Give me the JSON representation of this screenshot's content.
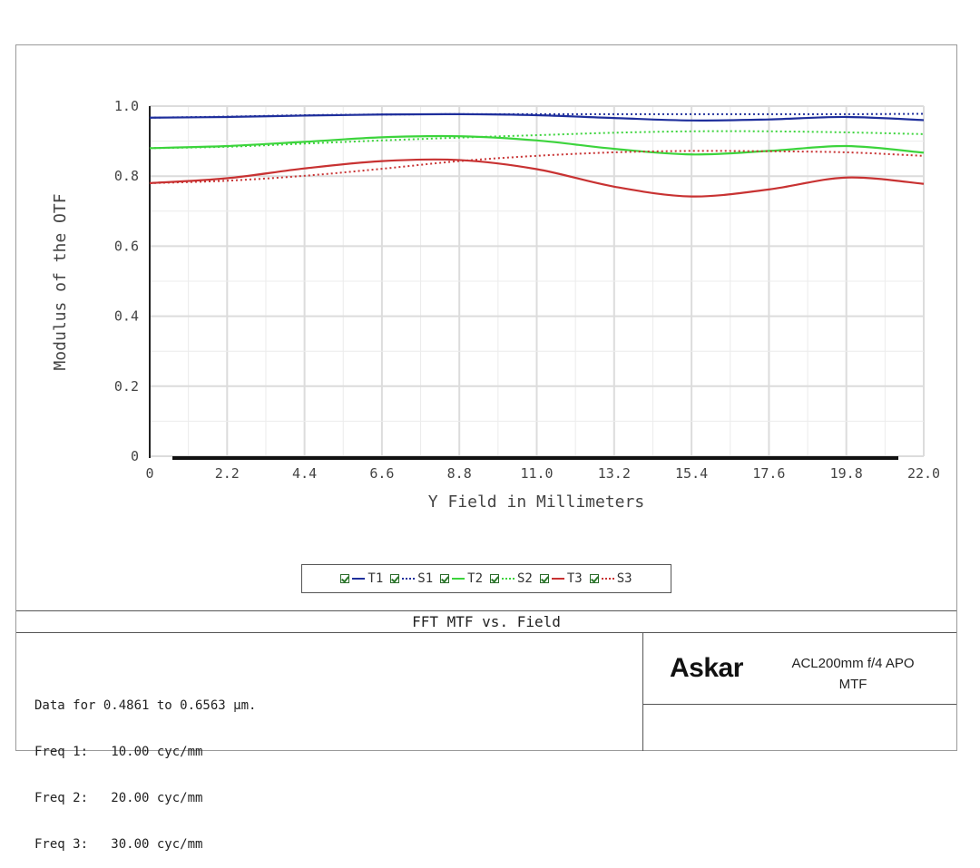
{
  "chart_data": {
    "type": "line",
    "title": "FFT MTF vs. Field",
    "xlabel": "Y Field in Millimeters",
    "ylabel": "Modulus of the OTF",
    "xlim": [
      0,
      22
    ],
    "ylim": [
      0,
      1
    ],
    "x_ticks": [
      "0",
      "2.2",
      "4.4",
      "6.6",
      "8.8",
      "11.0",
      "13.2",
      "15.4",
      "17.6",
      "19.8",
      "22.0"
    ],
    "y_ticks": [
      "0",
      "0.2",
      "0.4",
      "0.6",
      "0.8",
      "1.0"
    ],
    "grid": true,
    "legend_position": "bottom-center",
    "x": [
      0,
      2.2,
      4.4,
      6.6,
      8.8,
      11.0,
      13.2,
      15.4,
      17.6,
      19.8,
      22.0
    ],
    "series": [
      {
        "name": "T1",
        "color": "#1f2f9c",
        "style": "solid",
        "values": [
          0.967,
          0.969,
          0.973,
          0.976,
          0.977,
          0.974,
          0.966,
          0.959,
          0.962,
          0.969,
          0.96
        ]
      },
      {
        "name": "S1",
        "color": "#1f2f9c",
        "style": "dotted",
        "values": [
          0.967,
          0.97,
          0.974,
          0.976,
          0.977,
          0.977,
          0.977,
          0.977,
          0.977,
          0.977,
          0.978
        ]
      },
      {
        "name": "T2",
        "color": "#3cd43c",
        "style": "solid",
        "values": [
          0.88,
          0.886,
          0.898,
          0.911,
          0.914,
          0.902,
          0.878,
          0.862,
          0.872,
          0.886,
          0.867
        ]
      },
      {
        "name": "S2",
        "color": "#3cd43c",
        "style": "dotted",
        "values": [
          0.88,
          0.884,
          0.893,
          0.902,
          0.91,
          0.917,
          0.924,
          0.928,
          0.928,
          0.925,
          0.92
        ]
      },
      {
        "name": "T3",
        "color": "#c83232",
        "style": "solid",
        "values": [
          0.78,
          0.794,
          0.822,
          0.843,
          0.846,
          0.82,
          0.77,
          0.742,
          0.762,
          0.796,
          0.778
        ]
      },
      {
        "name": "S3",
        "color": "#c83232",
        "style": "dotted",
        "values": [
          0.78,
          0.787,
          0.801,
          0.821,
          0.843,
          0.858,
          0.868,
          0.872,
          0.871,
          0.868,
          0.858
        ]
      }
    ]
  },
  "info": {
    "line1": "Data for 0.4861 to 0.6563 µm.",
    "line2": "Freq 1:   10.00 cyc/mm",
    "line3": "Freq 2:   20.00 cyc/mm",
    "line4": "Freq 3:   30.00 cyc/mm"
  },
  "brand": {
    "logo_text": "Askar",
    "lens_line1": "ACL200mm f/4 APO",
    "lens_line2": "MTF"
  }
}
